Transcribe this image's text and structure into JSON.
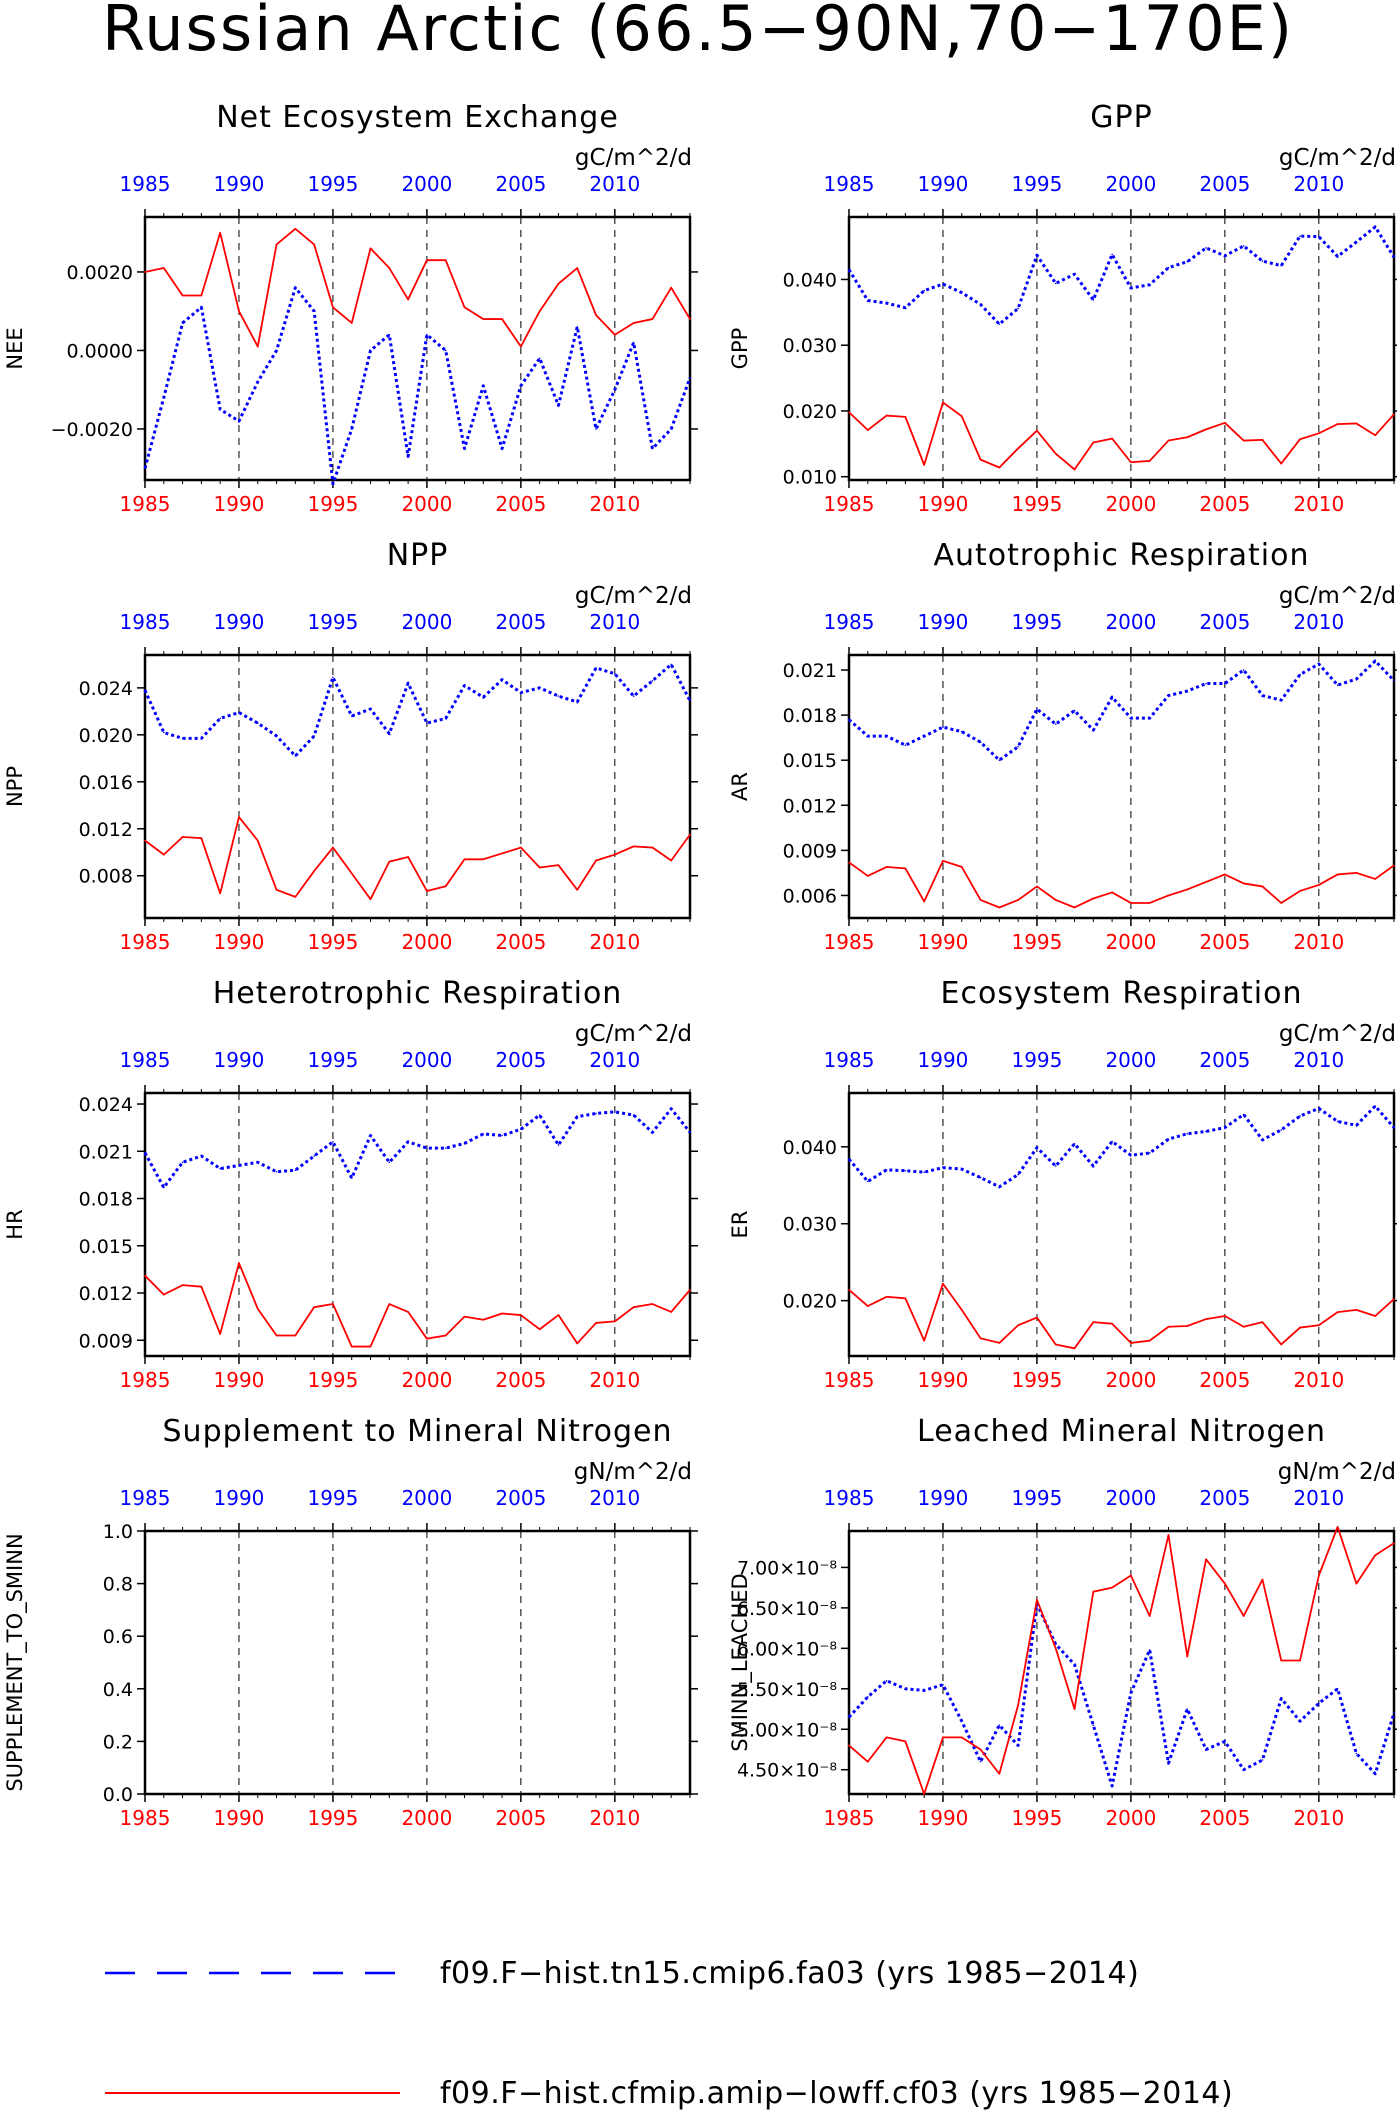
{
  "title": "Russian Arctic (66.5−90N,70−170E)",
  "legend": [
    {
      "label": "f09.F−hist.tn15.cmip6.fa03 (yrs 1985−2014)",
      "color": "#0000ff",
      "style": "dashed"
    },
    {
      "label": "f09.F−hist.cfmip.amip−lowff.cf03 (yrs 1985−2014)",
      "color": "#ff0000",
      "style": "solid"
    }
  ],
  "chart_data": [
    {
      "type": "line",
      "title": "Net Ecosystem Exchange",
      "ylabel": "NEE",
      "units": "gC/m^2/d",
      "ylim": [
        -0.0033,
        0.0034
      ],
      "yticks": [
        -0.002,
        0.0,
        0.002
      ],
      "ytick_labels": [
        "−0.0020",
        "0.0000",
        "0.0020"
      ],
      "x": [
        1985,
        1986,
        1987,
        1988,
        1989,
        1990,
        1991,
        1992,
        1993,
        1994,
        1995,
        1996,
        1997,
        1998,
        1999,
        2000,
        2001,
        2002,
        2003,
        2004,
        2005,
        2006,
        2007,
        2008,
        2009,
        2010,
        2011,
        2012,
        2013,
        2014
      ],
      "xticks": [
        1985,
        1990,
        1995,
        2000,
        2005,
        2010
      ],
      "series": [
        {
          "name": "f09.F−hist.tn15.cmip6.fa03 (yrs 1985−2014)",
          "color": "#0000ff",
          "values": [
            -0.003,
            -0.0012,
            0.0007,
            0.0011,
            -0.0015,
            -0.0018,
            -0.0008,
            0.0,
            0.0016,
            0.001,
            -0.0034,
            -0.002,
            0.0,
            0.0004,
            -0.0027,
            0.0004,
            0.0,
            -0.0025,
            -0.0009,
            -0.0025,
            -0.0009,
            -0.0002,
            -0.0014,
            0.0006,
            -0.002,
            -0.001,
            0.0002,
            -0.0025,
            -0.002,
            -0.0007
          ]
        },
        {
          "name": "f09.F−hist.cfmip.amip−lowff.cf03 (yrs 1985−2014)",
          "color": "#ff0000",
          "values": [
            0.002,
            0.0021,
            0.0014,
            0.0014,
            0.003,
            0.001,
            0.0001,
            0.0027,
            0.0031,
            0.0027,
            0.0011,
            0.0007,
            0.0026,
            0.0021,
            0.0013,
            0.0023,
            0.0023,
            0.0011,
            0.0008,
            0.0008,
            0.0001,
            0.001,
            0.0017,
            0.0021,
            0.0009,
            0.0004,
            0.0007,
            0.0008,
            0.0016,
            0.0008
          ]
        }
      ]
    },
    {
      "type": "line",
      "title": "GPP",
      "ylabel": "GPP",
      "units": "gC/m^2/d",
      "ylim": [
        0.0095,
        0.0495
      ],
      "yticks": [
        0.01,
        0.02,
        0.03,
        0.04
      ],
      "ytick_labels": [
        "0.010",
        "0.020",
        "0.030",
        "0.040"
      ],
      "x": [
        1985,
        1986,
        1987,
        1988,
        1989,
        1990,
        1991,
        1992,
        1993,
        1994,
        1995,
        1996,
        1997,
        1998,
        1999,
        2000,
        2001,
        2002,
        2003,
        2004,
        2005,
        2006,
        2007,
        2008,
        2009,
        2010,
        2011,
        2012,
        2013,
        2014
      ],
      "xticks": [
        1985,
        1990,
        1995,
        2000,
        2005,
        2010
      ],
      "series": [
        {
          "name": "f09.F−hist.tn15.cmip6.fa03 (yrs 1985−2014)",
          "color": "#0000ff",
          "values": [
            0.0415,
            0.0368,
            0.0364,
            0.0357,
            0.0383,
            0.0393,
            0.038,
            0.0362,
            0.0332,
            0.0356,
            0.0437,
            0.0394,
            0.0408,
            0.0369,
            0.0438,
            0.0387,
            0.0392,
            0.0418,
            0.0427,
            0.0448,
            0.0436,
            0.0451,
            0.0428,
            0.0421,
            0.0466,
            0.0465,
            0.0435,
            0.0457,
            0.048,
            0.0434
          ]
        },
        {
          "name": "f09.F−hist.cfmip.amip−lowff.cf03 (yrs 1985−2014)",
          "color": "#ff0000",
          "values": [
            0.0198,
            0.0171,
            0.0193,
            0.0191,
            0.0118,
            0.0213,
            0.0192,
            0.0126,
            0.0114,
            0.0143,
            0.017,
            0.0135,
            0.0111,
            0.0152,
            0.0158,
            0.0122,
            0.0124,
            0.0155,
            0.016,
            0.0172,
            0.0182,
            0.0155,
            0.0156,
            0.012,
            0.0157,
            0.0166,
            0.018,
            0.0181,
            0.0163,
            0.0195
          ]
        }
      ]
    },
    {
      "type": "line",
      "title": "NPP",
      "ylabel": "NPP",
      "units": "gC/m^2/d",
      "ylim": [
        0.0044,
        0.0268
      ],
      "yticks": [
        0.008,
        0.012,
        0.016,
        0.02,
        0.024
      ],
      "ytick_labels": [
        "0.008",
        "0.012",
        "0.016",
        "0.020",
        "0.024"
      ],
      "x": [
        1985,
        1986,
        1987,
        1988,
        1989,
        1990,
        1991,
        1992,
        1993,
        1994,
        1995,
        1996,
        1997,
        1998,
        1999,
        2000,
        2001,
        2002,
        2003,
        2004,
        2005,
        2006,
        2007,
        2008,
        2009,
        2010,
        2011,
        2012,
        2013,
        2014
      ],
      "xticks": [
        1985,
        1990,
        1995,
        2000,
        2005,
        2010
      ],
      "series": [
        {
          "name": "f09.F−hist.tn15.cmip6.fa03 (yrs 1985−2014)",
          "color": "#0000ff",
          "values": [
            0.0238,
            0.0202,
            0.0197,
            0.0197,
            0.0214,
            0.0219,
            0.021,
            0.0199,
            0.0182,
            0.0199,
            0.0249,
            0.0216,
            0.0222,
            0.0201,
            0.0244,
            0.021,
            0.0214,
            0.0242,
            0.0232,
            0.0247,
            0.0236,
            0.024,
            0.0233,
            0.0228,
            0.0257,
            0.0252,
            0.0233,
            0.0246,
            0.026,
            0.0229
          ]
        },
        {
          "name": "f09.F−hist.cfmip.amip−lowff.cf03 (yrs 1985−2014)",
          "color": "#ff0000",
          "values": [
            0.011,
            0.0098,
            0.0113,
            0.0112,
            0.0065,
            0.013,
            0.011,
            0.0068,
            0.0062,
            0.0084,
            0.0104,
            0.0082,
            0.006,
            0.0092,
            0.0096,
            0.0067,
            0.0071,
            0.0094,
            0.0094,
            0.0099,
            0.0104,
            0.0087,
            0.0089,
            0.0068,
            0.0093,
            0.0098,
            0.0105,
            0.0104,
            0.0093,
            0.0115
          ]
        }
      ]
    },
    {
      "type": "line",
      "title": "Autotrophic Respiration",
      "ylabel": "AR",
      "units": "gC/m^2/d",
      "ylim": [
        0.0045,
        0.022
      ],
      "yticks": [
        0.006,
        0.009,
        0.012,
        0.015,
        0.018,
        0.021
      ],
      "ytick_labels": [
        "0.006",
        "0.009",
        "0.012",
        "0.015",
        "0.018",
        "0.021"
      ],
      "x": [
        1985,
        1986,
        1987,
        1988,
        1989,
        1990,
        1991,
        1992,
        1993,
        1994,
        1995,
        1996,
        1997,
        1998,
        1999,
        2000,
        2001,
        2002,
        2003,
        2004,
        2005,
        2006,
        2007,
        2008,
        2009,
        2010,
        2011,
        2012,
        2013,
        2014
      ],
      "xticks": [
        1985,
        1990,
        1995,
        2000,
        2005,
        2010
      ],
      "series": [
        {
          "name": "f09.F−hist.tn15.cmip6.fa03 (yrs 1985−2014)",
          "color": "#0000ff",
          "values": [
            0.0177,
            0.0166,
            0.0166,
            0.016,
            0.0166,
            0.0172,
            0.0169,
            0.0162,
            0.015,
            0.0159,
            0.0184,
            0.0174,
            0.0183,
            0.017,
            0.0192,
            0.0178,
            0.0178,
            0.0193,
            0.0196,
            0.0201,
            0.0201,
            0.021,
            0.0193,
            0.019,
            0.0207,
            0.0214,
            0.02,
            0.0204,
            0.0216,
            0.0203
          ]
        },
        {
          "name": "f09.F−hist.cfmip.amip−lowff.cf03 (yrs 1985−2014)",
          "color": "#ff0000",
          "values": [
            0.0082,
            0.0073,
            0.0079,
            0.0078,
            0.0056,
            0.0083,
            0.0079,
            0.0057,
            0.0052,
            0.0057,
            0.0066,
            0.0057,
            0.0052,
            0.0058,
            0.0062,
            0.0055,
            0.0055,
            0.006,
            0.0064,
            0.0069,
            0.0074,
            0.0068,
            0.0066,
            0.0055,
            0.0063,
            0.0067,
            0.0074,
            0.0075,
            0.0071,
            0.008
          ]
        }
      ]
    },
    {
      "type": "line",
      "title": "Heterotrophic Respiration",
      "ylabel": "HR",
      "units": "gC/m^2/d",
      "ylim": [
        0.008,
        0.0247
      ],
      "yticks": [
        0.009,
        0.012,
        0.015,
        0.018,
        0.021,
        0.024
      ],
      "ytick_labels": [
        "0.009",
        "0.012",
        "0.015",
        "0.018",
        "0.021",
        "0.024"
      ],
      "x": [
        1985,
        1986,
        1987,
        1988,
        1989,
        1990,
        1991,
        1992,
        1993,
        1994,
        1995,
        1996,
        1997,
        1998,
        1999,
        2000,
        2001,
        2002,
        2003,
        2004,
        2005,
        2006,
        2007,
        2008,
        2009,
        2010,
        2011,
        2012,
        2013,
        2014
      ],
      "xticks": [
        1985,
        1990,
        1995,
        2000,
        2005,
        2010
      ],
      "series": [
        {
          "name": "f09.F−hist.tn15.cmip6.fa03 (yrs 1985−2014)",
          "color": "#0000ff",
          "values": [
            0.0209,
            0.0187,
            0.0203,
            0.0207,
            0.0199,
            0.0201,
            0.0203,
            0.0197,
            0.0198,
            0.0207,
            0.0216,
            0.0193,
            0.022,
            0.0203,
            0.0216,
            0.0212,
            0.0212,
            0.0215,
            0.0221,
            0.022,
            0.0224,
            0.0233,
            0.0214,
            0.0232,
            0.0234,
            0.0235,
            0.0233,
            0.0222,
            0.0237,
            0.0222
          ]
        },
        {
          "name": "f09.F−hist.cfmip.amip−lowff.cf03 (yrs 1985−2014)",
          "color": "#ff0000",
          "values": [
            0.0131,
            0.0119,
            0.0125,
            0.0124,
            0.0094,
            0.0139,
            0.011,
            0.0093,
            0.0093,
            0.0111,
            0.0113,
            0.0086,
            0.0086,
            0.0113,
            0.0108,
            0.0091,
            0.0093,
            0.0105,
            0.0103,
            0.0107,
            0.0106,
            0.0097,
            0.0106,
            0.0088,
            0.0101,
            0.0102,
            0.0111,
            0.0113,
            0.0108,
            0.0122
          ]
        }
      ]
    },
    {
      "type": "line",
      "title": "Ecosystem Respiration",
      "ylabel": "ER",
      "units": "gC/m^2/d",
      "ylim": [
        0.0128,
        0.047
      ],
      "yticks": [
        0.02,
        0.03,
        0.04
      ],
      "ytick_labels": [
        "0.020",
        "0.030",
        "0.040"
      ],
      "x": [
        1985,
        1986,
        1987,
        1988,
        1989,
        1990,
        1991,
        1992,
        1993,
        1994,
        1995,
        1996,
        1997,
        1998,
        1999,
        2000,
        2001,
        2002,
        2003,
        2004,
        2005,
        2006,
        2007,
        2008,
        2009,
        2010,
        2011,
        2012,
        2013,
        2014
      ],
      "xticks": [
        1985,
        1990,
        1995,
        2000,
        2005,
        2010
      ],
      "series": [
        {
          "name": "f09.F−hist.tn15.cmip6.fa03 (yrs 1985−2014)",
          "color": "#0000ff",
          "values": [
            0.0384,
            0.0355,
            0.037,
            0.0369,
            0.0367,
            0.0373,
            0.0371,
            0.036,
            0.0348,
            0.0364,
            0.0399,
            0.0375,
            0.0404,
            0.0375,
            0.0407,
            0.0389,
            0.0392,
            0.041,
            0.0417,
            0.042,
            0.0425,
            0.0442,
            0.0409,
            0.0422,
            0.044,
            0.045,
            0.0433,
            0.0428,
            0.0453,
            0.0425
          ]
        },
        {
          "name": "f09.F−hist.cfmip.amip−lowff.cf03 (yrs 1985−2014)",
          "color": "#ff0000",
          "values": [
            0.0214,
            0.0193,
            0.0205,
            0.0203,
            0.0148,
            0.0222,
            0.0188,
            0.0151,
            0.0145,
            0.0168,
            0.0178,
            0.0143,
            0.0138,
            0.0172,
            0.017,
            0.0145,
            0.0148,
            0.0166,
            0.0167,
            0.0176,
            0.018,
            0.0166,
            0.0172,
            0.0143,
            0.0165,
            0.0168,
            0.0185,
            0.0188,
            0.018,
            0.0202
          ]
        }
      ]
    },
    {
      "type": "line",
      "title": "Supplement to Mineral Nitrogen",
      "ylabel": "SUPPLEMENT_TO_SMINN",
      "units": "gN/m^2/d",
      "ylim": [
        0.0,
        1.0
      ],
      "yticks": [
        0.0,
        0.2,
        0.4,
        0.6,
        0.8,
        1.0
      ],
      "ytick_labels": [
        "0.0",
        "0.2",
        "0.4",
        "0.6",
        "0.8",
        "1.0"
      ],
      "x": [],
      "xticks": [
        1985,
        1990,
        1995,
        2000,
        2005,
        2010
      ],
      "series": []
    },
    {
      "type": "line",
      "title": "Leached Mineral Nitrogen",
      "ylabel": "SMINN_LEACHED",
      "units": "gN/m^2/d",
      "ylim": [
        4.2e-08,
        7.45e-08
      ],
      "yticks": [
        4.5e-08,
        5e-08,
        5.5e-08,
        6e-08,
        6.5e-08,
        7e-08
      ],
      "ytick_labels": [
        "4.50×10⁻⁸",
        "5.00×10⁻⁸",
        "5.50×10⁻⁸",
        "6.00×10⁻⁸",
        "6.50×10⁻⁸",
        "7.00×10⁻⁸"
      ],
      "x": [
        1985,
        1986,
        1987,
        1988,
        1989,
        1990,
        1991,
        1992,
        1993,
        1994,
        1995,
        1996,
        1997,
        1998,
        1999,
        2000,
        2001,
        2002,
        2003,
        2004,
        2005,
        2006,
        2007,
        2008,
        2009,
        2010,
        2011,
        2012,
        2013,
        2014
      ],
      "xticks": [
        1985,
        1990,
        1995,
        2000,
        2005,
        2010
      ],
      "series": [
        {
          "name": "f09.F−hist.tn15.cmip6.fa03 (yrs 1985−2014)",
          "color": "#0000ff",
          "values": [
            5.15e-08,
            5.4e-08,
            5.6e-08,
            5.5e-08,
            5.48e-08,
            5.55e-08,
            5.1e-08,
            4.6e-08,
            5.05e-08,
            4.8e-08,
            6.55e-08,
            6.05e-08,
            5.8e-08,
            5.05e-08,
            4.3e-08,
            5.45e-08,
            5.98e-08,
            4.58e-08,
            5.25e-08,
            4.75e-08,
            4.85e-08,
            4.5e-08,
            4.62e-08,
            5.38e-08,
            5.1e-08,
            5.32e-08,
            5.5e-08,
            4.7e-08,
            4.45e-08,
            5.2e-08
          ]
        },
        {
          "name": "f09.F−hist.cfmip.amip−lowff.cf03 (yrs 1985−2014)",
          "color": "#ff0000",
          "values": [
            4.8e-08,
            4.6e-08,
            4.9e-08,
            4.85e-08,
            4.2e-08,
            4.9e-08,
            4.9e-08,
            4.75e-08,
            4.45e-08,
            5.3e-08,
            6.6e-08,
            6e-08,
            5.25e-08,
            6.7e-08,
            6.75e-08,
            6.9e-08,
            6.4e-08,
            7.4e-08,
            5.9e-08,
            7.1e-08,
            6.8e-08,
            6.4e-08,
            6.85e-08,
            5.85e-08,
            5.85e-08,
            6.9e-08,
            7.5e-08,
            6.8e-08,
            7.15e-08,
            7.3e-08
          ]
        }
      ]
    }
  ]
}
